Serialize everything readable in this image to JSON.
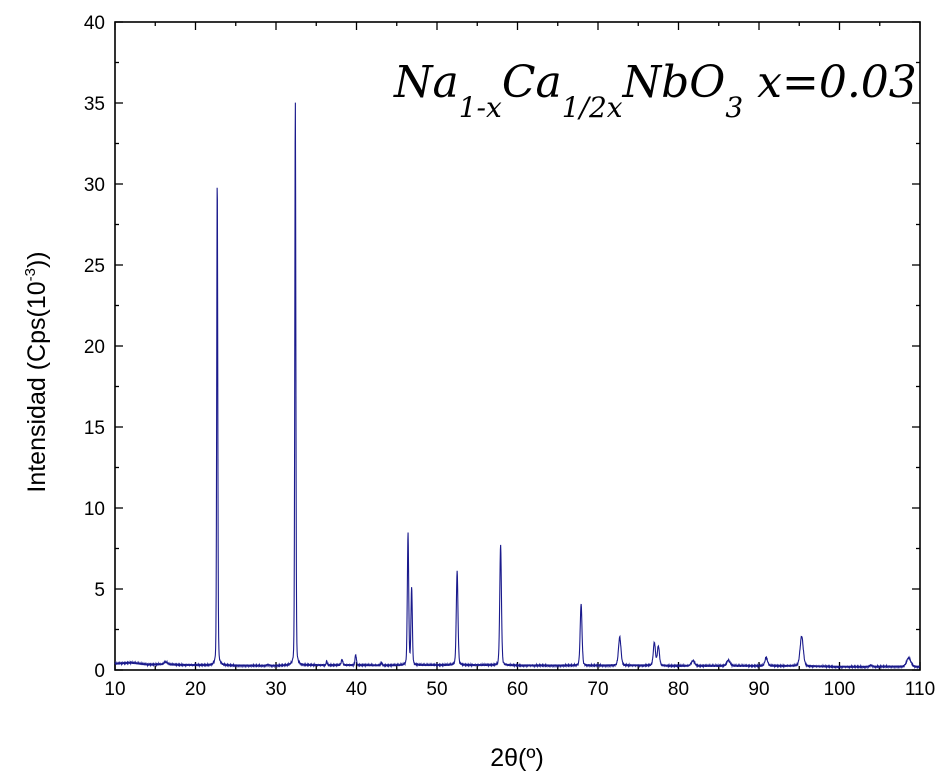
{
  "chart_data": {
    "type": "line",
    "title": "",
    "annotation": {
      "parts": [
        {
          "t": "Na",
          "sub": false
        },
        {
          "t": "1-x",
          "sub": true
        },
        {
          "t": "Ca",
          "sub": false
        },
        {
          "t": "1/2x",
          "sub": true
        },
        {
          "t": "NbO",
          "sub": false
        },
        {
          "t": "3",
          "sub": true
        },
        {
          "t": " x=0.03",
          "sub": false
        }
      ]
    },
    "xlabel": "2θ(º)",
    "ylabel_main": "Intensidad (Cps(10",
    "ylabel_sup": "-3",
    "ylabel_end": "))",
    "xlim": [
      10,
      110
    ],
    "ylim": [
      0,
      40
    ],
    "xticks": [
      10,
      20,
      30,
      40,
      50,
      60,
      70,
      80,
      90,
      100,
      110
    ],
    "yticks": [
      0,
      5,
      10,
      15,
      20,
      25,
      30,
      35,
      40
    ],
    "grid": false,
    "line_color": "#1a1a8c",
    "baseline": [
      [
        10,
        0.38
      ],
      [
        12,
        0.45
      ],
      [
        14,
        0.33
      ],
      [
        15.5,
        0.35
      ],
      [
        17,
        0.33
      ],
      [
        20,
        0.3
      ],
      [
        24,
        0.28
      ],
      [
        28,
        0.27
      ],
      [
        30,
        0.27
      ],
      [
        34,
        0.3
      ],
      [
        40,
        0.3
      ],
      [
        44,
        0.28
      ],
      [
        50,
        0.3
      ],
      [
        56,
        0.3
      ],
      [
        60,
        0.28
      ],
      [
        66,
        0.28
      ],
      [
        70,
        0.28
      ],
      [
        76,
        0.28
      ],
      [
        80,
        0.25
      ],
      [
        84,
        0.25
      ],
      [
        90,
        0.25
      ],
      [
        94,
        0.25
      ],
      [
        100,
        0.2
      ],
      [
        104,
        0.2
      ],
      [
        106,
        0.22
      ],
      [
        110,
        0.2
      ]
    ],
    "peaks": [
      {
        "x": 16.3,
        "h": 0.15,
        "w": 0.45
      },
      {
        "x": 22.7,
        "h": 30.1,
        "w": 0.14
      },
      {
        "x": 29.0,
        "h": 0.06,
        "w": 0.3
      },
      {
        "x": 32.4,
        "h": 34.9,
        "w": 0.14
      },
      {
        "x": 36.3,
        "h": 0.25,
        "w": 0.15
      },
      {
        "x": 38.2,
        "h": 0.35,
        "w": 0.2
      },
      {
        "x": 39.9,
        "h": 0.65,
        "w": 0.18
      },
      {
        "x": 43.1,
        "h": 0.2,
        "w": 0.15
      },
      {
        "x": 46.4,
        "h": 8.15,
        "w": 0.18
      },
      {
        "x": 46.85,
        "h": 4.8,
        "w": 0.18
      },
      {
        "x": 52.5,
        "h": 5.8,
        "w": 0.22
      },
      {
        "x": 57.9,
        "h": 7.45,
        "w": 0.22
      },
      {
        "x": 67.9,
        "h": 3.8,
        "w": 0.24
      },
      {
        "x": 72.7,
        "h": 1.75,
        "w": 0.33
      },
      {
        "x": 77.0,
        "h": 1.42,
        "w": 0.28
      },
      {
        "x": 77.5,
        "h": 1.2,
        "w": 0.28
      },
      {
        "x": 81.8,
        "h": 0.33,
        "w": 0.45
      },
      {
        "x": 86.2,
        "h": 0.35,
        "w": 0.45
      },
      {
        "x": 90.9,
        "h": 0.52,
        "w": 0.35
      },
      {
        "x": 95.3,
        "h": 1.85,
        "w": 0.42
      },
      {
        "x": 103.9,
        "h": 0.1,
        "w": 0.4
      },
      {
        "x": 108.6,
        "h": 0.55,
        "w": 0.55
      }
    ]
  }
}
